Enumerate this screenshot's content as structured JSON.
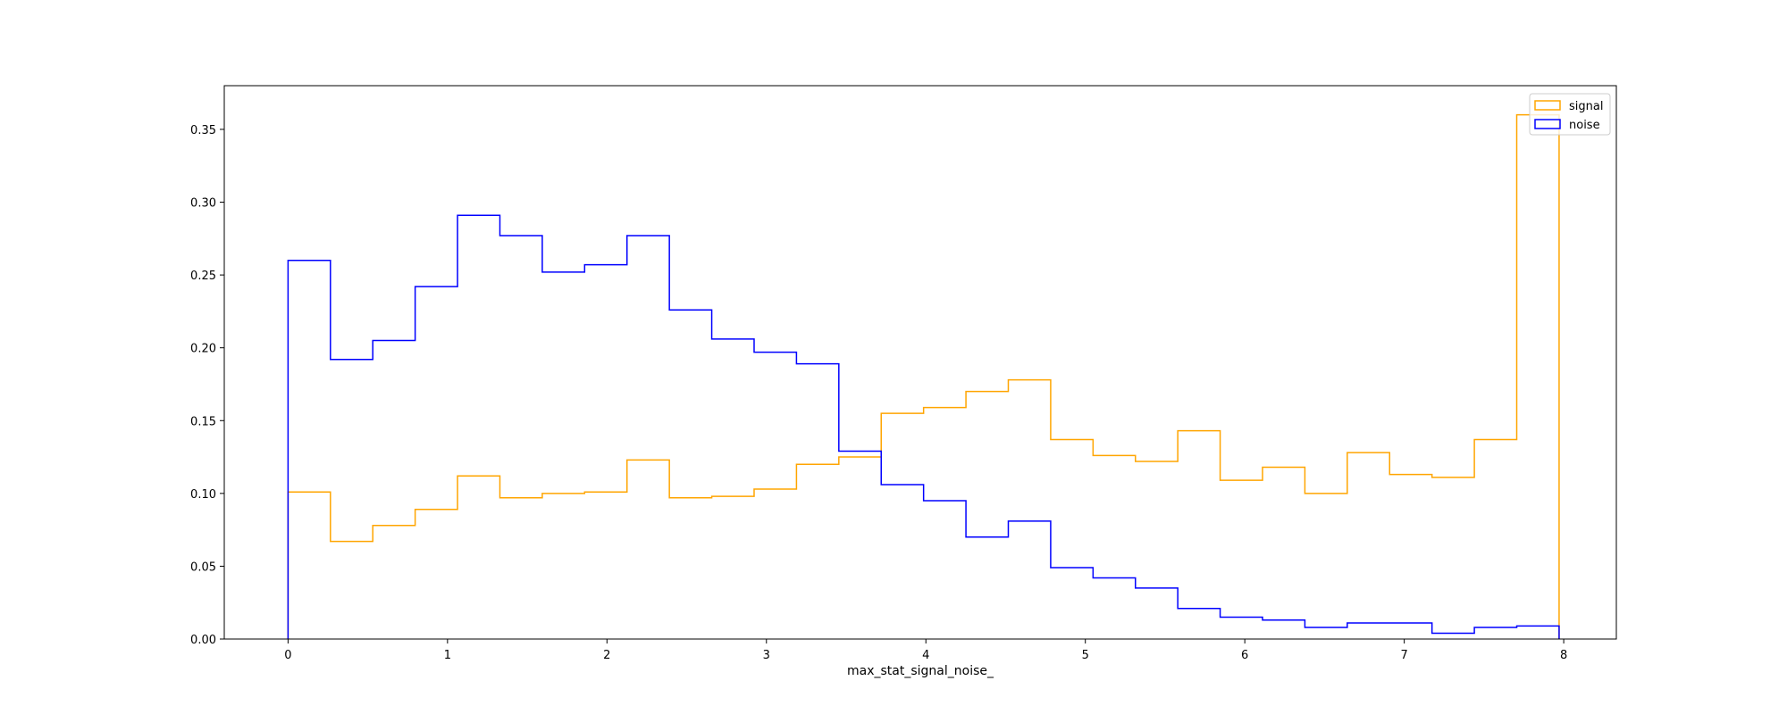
{
  "chart_data": {
    "type": "histogram",
    "xlabel": "max_stat_signal_noise_",
    "ylabel": "",
    "title": "",
    "xlim": [
      -0.4,
      8.33
    ],
    "ylim": [
      0,
      0.38
    ],
    "x_ticks": [
      0,
      1,
      2,
      3,
      4,
      5,
      6,
      7,
      8
    ],
    "y_ticks": [
      0.0,
      0.05,
      0.1,
      0.15,
      0.2,
      0.25,
      0.3,
      0.35
    ],
    "y_tick_labels": [
      "0.00",
      "0.05",
      "0.10",
      "0.15",
      "0.20",
      "0.25",
      "0.30",
      "0.35"
    ],
    "bin_edges": [
      0,
      0.2657,
      0.5314,
      0.7971,
      1.0628,
      1.3285,
      1.5942,
      1.8599,
      2.1256,
      2.3913,
      2.657,
      2.9227,
      3.1884,
      3.4541,
      3.7198,
      3.9855,
      4.2512,
      4.5169,
      4.7826,
      5.0483,
      5.314,
      5.5797,
      5.8454,
      6.1111,
      6.3768,
      6.6425,
      6.9082,
      7.1739,
      7.4396,
      7.7053,
      7.971
    ],
    "legend_position": "upper right",
    "series": [
      {
        "name": "signal",
        "color": "#ffa500",
        "values": [
          0.101,
          0.067,
          0.078,
          0.089,
          0.112,
          0.097,
          0.1,
          0.101,
          0.123,
          0.097,
          0.098,
          0.103,
          0.12,
          0.125,
          0.155,
          0.159,
          0.17,
          0.178,
          0.137,
          0.126,
          0.122,
          0.143,
          0.109,
          0.118,
          0.1,
          0.128,
          0.113,
          0.111,
          0.137,
          0.36
        ]
      },
      {
        "name": "noise",
        "color": "#0000ff",
        "values": [
          0.26,
          0.192,
          0.205,
          0.242,
          0.291,
          0.277,
          0.252,
          0.257,
          0.277,
          0.226,
          0.206,
          0.197,
          0.189,
          0.129,
          0.106,
          0.095,
          0.07,
          0.081,
          0.049,
          0.042,
          0.035,
          0.021,
          0.015,
          0.013,
          0.008,
          0.011,
          0.011,
          0.004,
          0.008,
          0.009
        ]
      }
    ]
  }
}
